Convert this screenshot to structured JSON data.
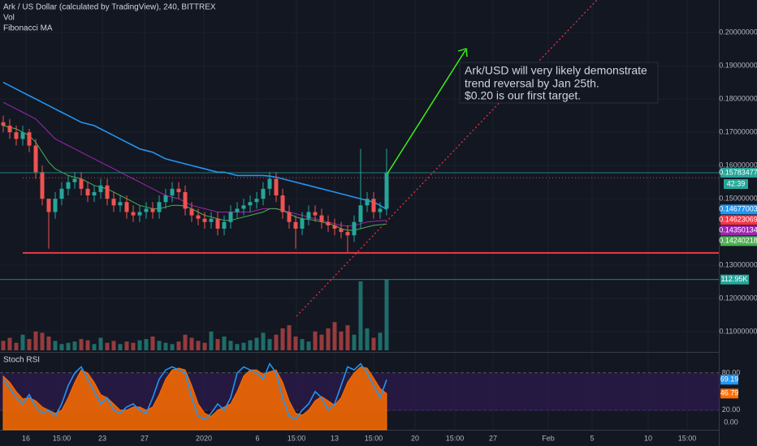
{
  "chart_data": {
    "type": "candlestick",
    "title": "Ark / US Dollar (calculated by TradingView), 240, BITTREX",
    "volume_label": "Vol",
    "ma_label": "Fibonacci MA",
    "stoch_label": "Stoch RSI",
    "annotation": [
      "Ark/USD will very likely demonstrate",
      "trend reversal by Jan 25th.",
      "$0.20 is our first target."
    ],
    "countdown": "42:39",
    "up_color": "#26a69a",
    "down_color": "#ef5350",
    "xlim": [
      -0.5,
      110.125
    ],
    "xticks": [
      {
        "value": 3.5,
        "label": "16"
      },
      {
        "value": 9,
        "label": "15:00"
      },
      {
        "value": 15.25,
        "label": "23"
      },
      {
        "value": 21.75,
        "label": "27"
      },
      {
        "value": 30.875,
        "label": "2020"
      },
      {
        "value": 39.125,
        "label": "6"
      },
      {
        "value": 45.125,
        "label": "15:00"
      },
      {
        "value": 51,
        "label": "13"
      },
      {
        "value": 57,
        "label": "15:00"
      },
      {
        "value": 63.375,
        "label": "20"
      },
      {
        "value": 69.5,
        "label": "15:00"
      },
      {
        "value": 75.375,
        "label": "27"
      },
      {
        "value": 83.875,
        "label": "Feb"
      },
      {
        "value": 90.625,
        "label": "5"
      },
      {
        "value": 99.25,
        "label": "10"
      },
      {
        "value": 105.25,
        "label": "15:00"
      }
    ],
    "ylim": [
      0.1044,
      0.2098
    ],
    "yticks": [
      {
        "value": 0.2,
        "label": "0.20000000"
      },
      {
        "value": 0.19,
        "label": "0.19000000"
      },
      {
        "value": 0.18,
        "label": "0.18000000"
      },
      {
        "value": 0.17,
        "label": "0.17000000"
      },
      {
        "value": 0.16,
        "label": "0.16000000"
      },
      {
        "value": 0.15,
        "label": "0.15000000"
      },
      {
        "value": 0.13,
        "label": "0.13000000"
      },
      {
        "value": 0.12,
        "label": "0.12000000"
      },
      {
        "value": 0.11,
        "label": "0.11000000"
      }
    ],
    "opens": [
      0.173,
      0.172,
      0.17,
      0.168,
      0.17,
      0.166,
      0.158,
      0.15,
      0.146,
      0.15,
      0.153,
      0.155,
      0.156,
      0.153,
      0.151,
      0.152,
      0.154,
      0.15,
      0.148,
      0.149,
      0.146,
      0.145,
      0.146,
      0.147,
      0.146,
      0.149,
      0.151,
      0.153,
      0.152,
      0.147,
      0.145,
      0.144,
      0.143,
      0.144,
      0.141,
      0.143,
      0.146,
      0.147,
      0.148,
      0.149,
      0.15,
      0.153,
      0.156,
      0.151,
      0.146,
      0.143,
      0.141,
      0.144,
      0.146,
      0.145,
      0.143,
      0.142,
      0.141,
      0.14,
      0.139,
      0.143,
      0.148,
      0.15,
      0.146,
      0.147
    ],
    "highs": [
      0.175,
      0.174,
      0.172,
      0.172,
      0.171,
      0.168,
      0.16,
      0.148,
      0.152,
      0.155,
      0.157,
      0.158,
      0.158,
      0.155,
      0.154,
      0.156,
      0.156,
      0.152,
      0.151,
      0.151,
      0.148,
      0.148,
      0.149,
      0.149,
      0.151,
      0.153,
      0.155,
      0.155,
      0.154,
      0.149,
      0.147,
      0.146,
      0.146,
      0.146,
      0.145,
      0.148,
      0.149,
      0.15,
      0.151,
      0.152,
      0.155,
      0.158,
      0.158,
      0.153,
      0.148,
      0.145,
      0.146,
      0.148,
      0.148,
      0.147,
      0.145,
      0.144,
      0.143,
      0.142,
      0.145,
      0.165,
      0.152,
      0.152,
      0.149,
      0.165
    ],
    "lows": [
      0.17,
      0.168,
      0.166,
      0.166,
      0.164,
      0.156,
      0.148,
      0.135,
      0.144,
      0.148,
      0.151,
      0.153,
      0.151,
      0.149,
      0.149,
      0.15,
      0.148,
      0.146,
      0.146,
      0.144,
      0.143,
      0.143,
      0.144,
      0.144,
      0.144,
      0.147,
      0.149,
      0.15,
      0.145,
      0.143,
      0.142,
      0.141,
      0.141,
      0.139,
      0.139,
      0.141,
      0.144,
      0.145,
      0.146,
      0.147,
      0.148,
      0.151,
      0.149,
      0.144,
      0.141,
      0.135,
      0.139,
      0.142,
      0.143,
      0.141,
      0.14,
      0.139,
      0.138,
      0.134,
      0.137,
      0.141,
      0.146,
      0.144,
      0.144,
      0.145
    ],
    "closes": [
      0.172,
      0.17,
      0.168,
      0.17,
      0.166,
      0.158,
      0.15,
      0.146,
      0.15,
      0.153,
      0.155,
      0.156,
      0.153,
      0.151,
      0.152,
      0.154,
      0.15,
      0.148,
      0.149,
      0.146,
      0.145,
      0.146,
      0.147,
      0.146,
      0.149,
      0.151,
      0.153,
      0.152,
      0.147,
      0.145,
      0.144,
      0.143,
      0.144,
      0.141,
      0.143,
      0.146,
      0.147,
      0.148,
      0.149,
      0.15,
      0.153,
      0.156,
      0.151,
      0.146,
      0.143,
      0.141,
      0.144,
      0.146,
      0.145,
      0.143,
      0.142,
      0.141,
      0.14,
      0.139,
      0.143,
      0.148,
      0.15,
      0.146,
      0.147,
      0.15783477
    ],
    "ma_series": [
      {
        "color": "#2196f3",
        "values": [
          0.185,
          0.184,
          0.183,
          0.182,
          0.181,
          0.18,
          0.179,
          0.178,
          0.177,
          0.176,
          0.175,
          0.174,
          0.173,
          0.1725,
          0.172,
          0.171,
          0.17,
          0.169,
          0.168,
          0.167,
          0.166,
          0.165,
          0.1645,
          0.164,
          0.163,
          0.162,
          0.1615,
          0.161,
          0.1605,
          0.16,
          0.1595,
          0.159,
          0.1585,
          0.158,
          0.158,
          0.1575,
          0.157,
          0.157,
          0.157,
          0.157,
          0.157,
          0.1568,
          0.1565,
          0.156,
          0.1555,
          0.155,
          0.1545,
          0.154,
          0.1535,
          0.153,
          0.1525,
          0.152,
          0.1515,
          0.151,
          0.1505,
          0.15,
          0.1495,
          0.149,
          0.148,
          0.14677003
        ]
      },
      {
        "color": "#9c27b0",
        "values": [
          0.179,
          0.178,
          0.177,
          0.176,
          0.175,
          0.174,
          0.172,
          0.17,
          0.168,
          0.167,
          0.166,
          0.165,
          0.164,
          0.163,
          0.162,
          0.161,
          0.16,
          0.159,
          0.158,
          0.157,
          0.156,
          0.155,
          0.154,
          0.153,
          0.152,
          0.151,
          0.1505,
          0.15,
          0.149,
          0.148,
          0.1475,
          0.147,
          0.1465,
          0.146,
          0.146,
          0.146,
          0.146,
          0.146,
          0.146,
          0.1465,
          0.147,
          0.147,
          0.147,
          0.1465,
          0.146,
          0.1455,
          0.145,
          0.1445,
          0.144,
          0.1435,
          0.143,
          0.1425,
          0.142,
          0.1418,
          0.142,
          0.1425,
          0.143,
          0.1432,
          0.1434,
          0.14350134
        ]
      },
      {
        "color": "#4caf50",
        "values": [
          0.172,
          0.1715,
          0.171,
          0.17,
          0.169,
          0.167,
          0.164,
          0.161,
          0.159,
          0.158,
          0.157,
          0.1565,
          0.156,
          0.155,
          0.154,
          0.1535,
          0.153,
          0.152,
          0.151,
          0.15,
          0.149,
          0.148,
          0.1475,
          0.147,
          0.147,
          0.1475,
          0.148,
          0.148,
          0.1478,
          0.147,
          0.146,
          0.145,
          0.1445,
          0.144,
          0.1435,
          0.1435,
          0.144,
          0.1445,
          0.145,
          0.1455,
          0.146,
          0.147,
          0.147,
          0.1465,
          0.1455,
          0.1445,
          0.144,
          0.1438,
          0.1435,
          0.143,
          0.1425,
          0.142,
          0.141,
          0.1405,
          0.1405,
          0.141,
          0.1415,
          0.142,
          0.1422,
          0.14240218
        ]
      }
    ],
    "extra_ma": {
      "color": "#f23645",
      "value": 0.14623069
    },
    "levels": [
      {
        "value": 0.1337,
        "color": "#f23645",
        "style": "solid"
      },
      {
        "value": 0.1563,
        "color": "#f23645",
        "style": "dotted"
      }
    ],
    "volume": {
      "ylim": [
        0,
        132
      ],
      "values": [
        15,
        20,
        12,
        25,
        18,
        30,
        28,
        22,
        15,
        10,
        12,
        14,
        18,
        16,
        10,
        20,
        12,
        15,
        10,
        14,
        12,
        16,
        18,
        22,
        15,
        12,
        10,
        14,
        25,
        20,
        15,
        12,
        30,
        18,
        22,
        15,
        10,
        12,
        16,
        20,
        28,
        18,
        25,
        35,
        40,
        22,
        18,
        14,
        30,
        25,
        35,
        45,
        30,
        40,
        25,
        110,
        35,
        20,
        28,
        112.95
      ],
      "last_label": "112.95K"
    },
    "stoch": {
      "ylim": [
        -11.8,
        110.2
      ],
      "yticks": [
        {
          "value": 80,
          "label": "80.00"
        },
        {
          "value": 20,
          "label": "20.00"
        },
        {
          "value": 0,
          "label": "0.00"
        }
      ],
      "k": {
        "color": "#2196f3",
        "values": [
          70,
          55,
          40,
          30,
          45,
          25,
          15,
          20,
          10,
          30,
          60,
          80,
          90,
          70,
          50,
          30,
          40,
          20,
          15,
          25,
          30,
          20,
          15,
          40,
          70,
          85,
          90,
          85,
          80,
          40,
          10,
          5,
          15,
          30,
          20,
          40,
          80,
          90,
          85,
          80,
          70,
          95,
          80,
          40,
          10,
          5,
          20,
          30,
          50,
          40,
          20,
          30,
          60,
          90,
          85,
          95,
          80,
          60,
          40,
          69.19
        ]
      },
      "d": {
        "color": "#ff6d00",
        "values": [
          75,
          65,
          50,
          38,
          40,
          35,
          25,
          20,
          15,
          20,
          40,
          65,
          85,
          80,
          65,
          45,
          40,
          30,
          20,
          20,
          25,
          25,
          20,
          25,
          45,
          70,
          85,
          88,
          85,
          60,
          30,
          15,
          10,
          20,
          25,
          30,
          50,
          75,
          85,
          85,
          78,
          82,
          85,
          65,
          35,
          15,
          12,
          20,
          35,
          42,
          35,
          28,
          40,
          65,
          80,
          90,
          88,
          72,
          55,
          46.79
        ]
      }
    }
  }
}
